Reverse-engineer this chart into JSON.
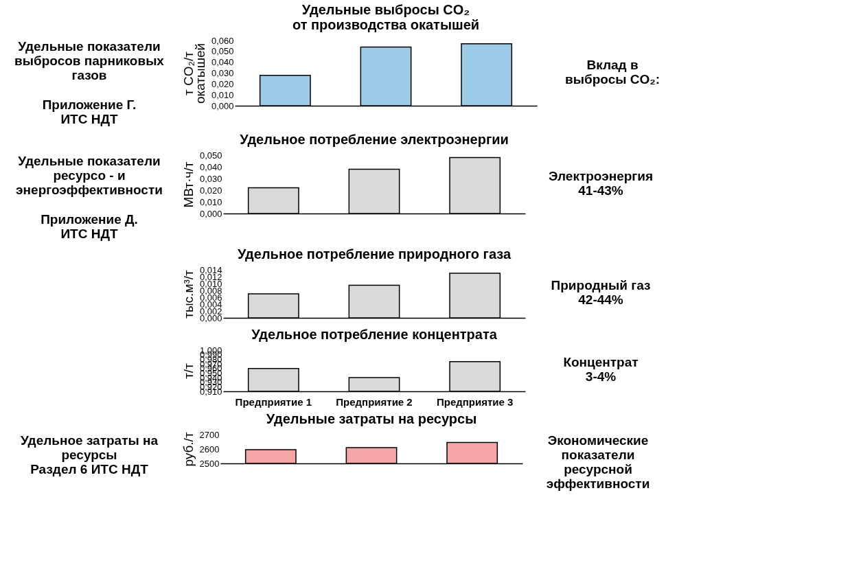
{
  "chart_data": [
    {
      "type": "bar",
      "title": "Удельные выбросы CO₂\nот производства окатышей",
      "ylabel": "т CO₂/т\nокатышей",
      "categories": [
        null,
        null,
        null
      ],
      "values": [
        0.028,
        0.054,
        0.057
      ],
      "color": "#9dcbe8",
      "ylim": [
        0,
        0.06
      ],
      "yticks": [
        {
          "value": 0,
          "label": "0,000"
        },
        {
          "value": 0.01,
          "label": "0,010"
        },
        {
          "value": 0.02,
          "label": "0,020"
        },
        {
          "value": 0.03,
          "label": "0,030"
        },
        {
          "value": 0.04,
          "label": "0,040"
        },
        {
          "value": 0.05,
          "label": "0,050"
        },
        {
          "value": 0.06,
          "label": "0,060"
        }
      ],
      "tick_labels": "y",
      "annotations": [
        "Удельные показатели\nвыбросов парниковых\nгазов",
        "Приложение Г.\nИТС НДТ",
        "Вклад в\nвыбросы CO₂:"
      ]
    },
    {
      "type": "bar",
      "title": "Удельное потребление электроэнергии",
      "ylabel": "МВт·ч/т",
      "categories": [
        null,
        null,
        null
      ],
      "values": [
        0.022,
        0.038,
        0.048
      ],
      "color": "#d9d9d9",
      "ylim": [
        0,
        0.05
      ],
      "yticks": [
        {
          "value": 0,
          "label": "0,000"
        },
        {
          "value": 0.01,
          "label": "0,010"
        },
        {
          "value": 0.02,
          "label": "0,020"
        },
        {
          "value": 0.03,
          "label": "0,030"
        },
        {
          "value": 0.04,
          "label": "0,040"
        },
        {
          "value": 0.05,
          "label": "0,050"
        }
      ],
      "tick_labels": "y",
      "annotations": [
        "Удельные показатели\nресурсо - и\nэнергоэффективности",
        "Приложение Д.\nИТС НДТ",
        "Электроэнергия\n41-43%"
      ]
    },
    {
      "type": "bar",
      "title": "Удельное потребление природного газа",
      "ylabel": "тыс.м³/т",
      "categories": [
        null,
        null,
        null
      ],
      "values": [
        0.007,
        0.0095,
        0.013
      ],
      "color": "#d9d9d9",
      "ylim": [
        0,
        0.014
      ],
      "yticks": [
        {
          "value": 0,
          "label": "0,000"
        },
        {
          "value": 0.002,
          "label": "0,002"
        },
        {
          "value": 0.004,
          "label": "0,004"
        },
        {
          "value": 0.006,
          "label": "0,006"
        },
        {
          "value": 0.008,
          "label": "0,008"
        },
        {
          "value": 0.01,
          "label": "0,010"
        },
        {
          "value": 0.012,
          "label": "0,012"
        },
        {
          "value": 0.014,
          "label": "0,014"
        }
      ],
      "tick_labels": "y",
      "annotations": [
        "Природный газ\n42-44%"
      ]
    },
    {
      "type": "bar",
      "title": "Удельное потребление концентрата",
      "ylabel": "т/т",
      "categories": [
        "Предприятие 1",
        "Предприятие 2",
        "Предприятие 3"
      ],
      "values": [
        0.96,
        0.94,
        0.975
      ],
      "color": "#d9d9d9",
      "ylim": [
        0.91,
        1.0
      ],
      "yticks": [
        {
          "value": 0.91,
          "label": "0,910"
        },
        {
          "value": 0.92,
          "label": "0,920"
        },
        {
          "value": 0.93,
          "label": "0,930"
        },
        {
          "value": 0.94,
          "label": "0,940"
        },
        {
          "value": 0.95,
          "label": "0,950"
        },
        {
          "value": 0.96,
          "label": "0,960"
        },
        {
          "value": 0.97,
          "label": "0,970"
        },
        {
          "value": 0.98,
          "label": "0,980"
        },
        {
          "value": 0.99,
          "label": "0,990"
        },
        {
          "value": 1.0,
          "label": "1,000"
        }
      ],
      "annotations": [
        "Концентрат\n3-4%"
      ]
    },
    {
      "type": "bar",
      "title": "Удельные затраты на ресурсы",
      "ylabel": "руб./т",
      "categories": [
        null,
        null,
        null
      ],
      "values": [
        2595,
        2610,
        2645
      ],
      "color": "#f4a6a6",
      "ylim": [
        2500,
        2700
      ],
      "yticks": [
        2500,
        2600,
        2700
      ],
      "tick_labels": "y",
      "annotations": [
        "Удельное затраты на\nресурсы\nРаздел 6 ИТС НДТ",
        "Экономические\nпоказатели\nресурсной\nэффективности"
      ]
    }
  ]
}
